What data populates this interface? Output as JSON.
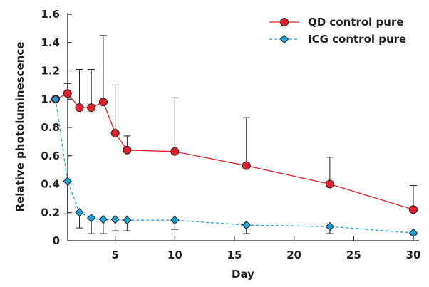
{
  "chart_data": {
    "type": "line",
    "xlabel": "Day",
    "ylabel": "Relative photoluminescence",
    "xlim": [
      0,
      30
    ],
    "ylim": [
      0,
      1.6
    ],
    "xticks": [
      5,
      10,
      15,
      20,
      25,
      30
    ],
    "yticks": [
      0,
      0.2,
      0.4,
      0.6,
      0.8,
      1.0,
      1.2,
      1.4,
      1.6
    ],
    "ytick_labels": [
      "0",
      "0.2",
      "0.4",
      "0.6",
      "0.8",
      "1.0",
      "1.2",
      "1.4",
      "1.6"
    ],
    "grid": false,
    "legend_position": "top-right",
    "series": [
      {
        "name": "QD control pure",
        "color": "#e0202a",
        "marker": "circle",
        "line_style": "solid",
        "x": [
          0,
          1,
          2,
          3,
          4,
          5,
          6,
          10,
          16,
          23,
          30
        ],
        "y": [
          1.0,
          1.04,
          0.94,
          0.94,
          0.98,
          0.76,
          0.64,
          0.63,
          0.53,
          0.4,
          0.22
        ],
        "error_upper": [
          1.0,
          1.11,
          1.21,
          1.21,
          1.45,
          1.1,
          0.74,
          1.01,
          0.87,
          0.59,
          0.39
        ]
      },
      {
        "name": "ICG control pure",
        "color": "#1aa3d6",
        "marker": "diamond",
        "line_style": "dashed",
        "x": [
          0,
          1,
          2,
          3,
          4,
          5,
          6,
          10,
          16,
          23,
          30
        ],
        "y": [
          1.0,
          0.42,
          0.2,
          0.16,
          0.15,
          0.15,
          0.145,
          0.145,
          0.11,
          0.1,
          0.055
        ],
        "error_lower": [
          1.0,
          0.19,
          0.09,
          0.05,
          0.05,
          0.07,
          0.07,
          0.08,
          0.05,
          0.05,
          0.04
        ]
      }
    ]
  }
}
